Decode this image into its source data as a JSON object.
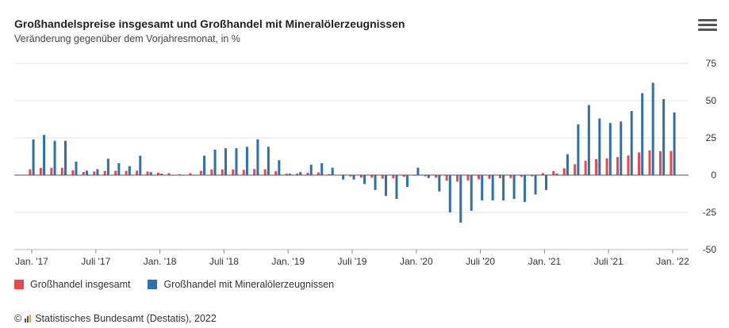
{
  "header": {
    "title": "Großhandelspreise insgesamt und Großhandel mit Mineralölerzeugnissen",
    "subtitle": "Veränderung gegenüber dem Vorjahresmonat, in %",
    "menu_icon": "hamburger-menu-icon"
  },
  "footer": {
    "copyright_symbol": "©",
    "source": "Statistisches Bundesamt (Destatis), 2022",
    "logo_icon": "destatis-logo-icon"
  },
  "colors": {
    "insgesamt": "#e8474f",
    "mineraloel": "#2f6fae",
    "grid": "#e6e6e6",
    "zero_line": "#555555"
  },
  "chart_data": {
    "type": "bar",
    "x_tick_labels": [
      "Jan. '17",
      "Juli '17",
      "Jan. '18",
      "Juli '18",
      "Jan. '19",
      "Juli '19",
      "Jan. '20",
      "Juli '20",
      "Jan. '21",
      "Juli '21",
      "Jan. '22"
    ],
    "x_tick_every": 6,
    "categories": [
      "2017-01",
      "2017-02",
      "2017-03",
      "2017-04",
      "2017-05",
      "2017-06",
      "2017-07",
      "2017-08",
      "2017-09",
      "2017-10",
      "2017-11",
      "2017-12",
      "2018-01",
      "2018-02",
      "2018-03",
      "2018-04",
      "2018-05",
      "2018-06",
      "2018-07",
      "2018-08",
      "2018-09",
      "2018-10",
      "2018-11",
      "2018-12",
      "2019-01",
      "2019-02",
      "2019-03",
      "2019-04",
      "2019-05",
      "2019-06",
      "2019-07",
      "2019-08",
      "2019-09",
      "2019-10",
      "2019-11",
      "2019-12",
      "2020-01",
      "2020-02",
      "2020-03",
      "2020-04",
      "2020-05",
      "2020-06",
      "2020-07",
      "2020-08",
      "2020-09",
      "2020-10",
      "2020-11",
      "2020-12",
      "2021-01",
      "2021-02",
      "2021-03",
      "2021-04",
      "2021-05",
      "2021-06",
      "2021-07",
      "2021-08",
      "2021-09",
      "2021-10",
      "2021-11",
      "2021-12",
      "2022-01"
    ],
    "series": [
      {
        "name": "Großhandel insgesamt",
        "values": [
          3.9,
          4.8,
          4.9,
          4.9,
          3.3,
          2.1,
          2.4,
          2.8,
          2.9,
          2.8,
          3.0,
          2.4,
          1.6,
          1.3,
          0.6,
          1.3,
          2.9,
          3.7,
          3.8,
          3.8,
          3.5,
          4.1,
          3.9,
          2.6,
          1.0,
          1.1,
          1.6,
          1.8,
          0.7,
          -0.1,
          -0.9,
          -1.7,
          -1.8,
          -2.4,
          -2.1,
          -1.2,
          -0.4,
          -0.8,
          -1.8,
          -3.7,
          -4.4,
          -3.6,
          -2.8,
          -2.6,
          -2.1,
          -2.0,
          -1.2,
          -0.8,
          1.4,
          2.7,
          4.6,
          7.3,
          9.7,
          10.7,
          11.3,
          12.1,
          13.2,
          15.2,
          16.6,
          16.1,
          16.2
        ],
        "color": "#e8474f"
      },
      {
        "name": "Großhandel mit Mineralölerzeugnissen",
        "values": [
          24,
          27,
          23,
          23,
          9,
          3,
          4,
          11,
          8,
          6,
          13,
          2,
          1,
          0,
          0,
          0,
          13,
          17,
          18,
          18,
          19,
          24,
          19,
          10,
          1,
          2,
          7,
          8,
          5,
          -3,
          -3,
          -6,
          -10,
          -14,
          -16,
          -8,
          5,
          -2,
          -11,
          -25,
          -32,
          -24,
          -17,
          -17,
          -17,
          -16,
          -18,
          -13,
          -10,
          1,
          14,
          34,
          47,
          38,
          35,
          36,
          43,
          55,
          62,
          51,
          42
        ],
        "color": "#2f6fae"
      }
    ],
    "ylim": [
      -50,
      75
    ],
    "yticks": [
      -50,
      -25,
      0,
      25,
      50,
      75
    ],
    "grid": true,
    "legend_position": "bottom-left"
  }
}
